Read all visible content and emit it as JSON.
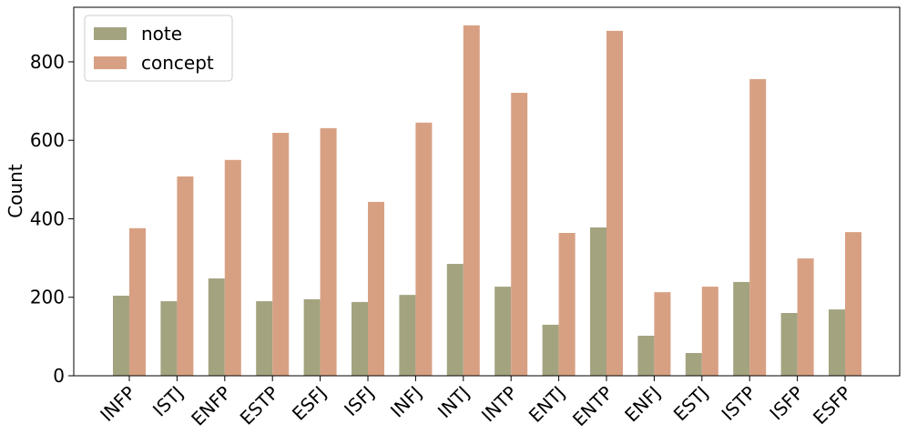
{
  "chart_data": {
    "type": "bar",
    "ylabel": "Count",
    "categories": [
      "INFP",
      "ISTJ",
      "ENFP",
      "ESTP",
      "ESFJ",
      "ISFJ",
      "INFJ",
      "INTJ",
      "INTP",
      "ENTJ",
      "ENTP",
      "ENFJ",
      "ESTJ",
      "ISTP",
      "ISFP",
      "ESFP"
    ],
    "series": [
      {
        "name": "note",
        "color": "#a3a380",
        "values": [
          204,
          190,
          248,
          190,
          195,
          188,
          206,
          285,
          227,
          130,
          378,
          102,
          58,
          239,
          160,
          169
        ]
      },
      {
        "name": "concept",
        "color": "#d8a083",
        "values": [
          376,
          508,
          550,
          619,
          631,
          443,
          645,
          893,
          721,
          364,
          879,
          213,
          227,
          756,
          299,
          366
        ]
      }
    ],
    "ylim": [
      0,
      939
    ],
    "yticks": [
      0,
      200,
      400,
      600,
      800
    ],
    "legend": "upper left"
  }
}
